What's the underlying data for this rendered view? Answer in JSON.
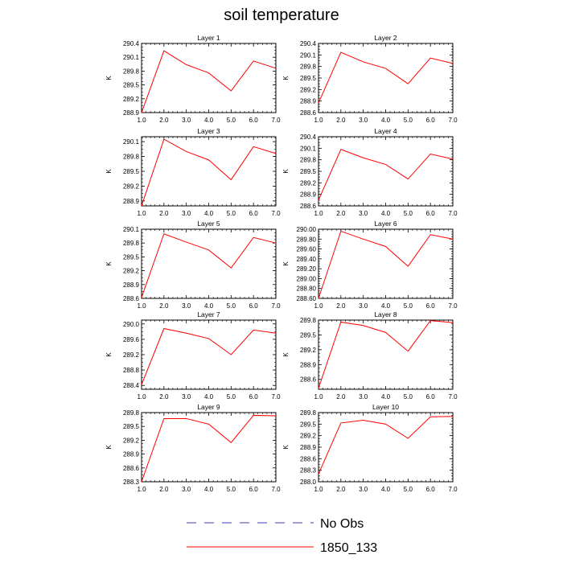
{
  "title": "soil temperature",
  "colors": {
    "model_line": "#ff0000",
    "obs_line": "#3b3bb5",
    "axis": "#000000"
  },
  "legend": {
    "entries": [
      {
        "label": "No Obs",
        "style": "dashed",
        "color": "#3b3bb5"
      },
      {
        "label": "1850_133",
        "style": "solid",
        "color": "#ff0000"
      }
    ]
  },
  "chart_data": [
    {
      "type": "line",
      "title": "Layer 1",
      "ylabel": "K",
      "x": [
        1,
        2,
        3,
        4,
        5,
        6,
        7
      ],
      "xlim": [
        1,
        7
      ],
      "ylim": [
        288.9,
        290.4
      ],
      "xticks": [
        "1.0",
        "2.0",
        "3.0",
        "4.0",
        "5.0",
        "6.0",
        "7.0"
      ],
      "yticks": [
        "288.9",
        "289.2",
        "289.5",
        "289.8",
        "290.1",
        "290.4"
      ],
      "series": [
        {
          "values": [
            288.9,
            290.24,
            289.94,
            289.76,
            289.37,
            290.02,
            289.86
          ]
        }
      ]
    },
    {
      "type": "line",
      "title": "Layer 2",
      "ylabel": "K",
      "x": [
        1,
        2,
        3,
        4,
        5,
        6,
        7
      ],
      "xlim": [
        1,
        7
      ],
      "ylim": [
        288.6,
        290.4
      ],
      "xticks": [
        "1.0",
        "2.0",
        "3.0",
        "4.0",
        "5.0",
        "6.0",
        "7.0"
      ],
      "yticks": [
        "288.6",
        "288.9",
        "289.2",
        "289.5",
        "289.8",
        "290.1",
        "290.4"
      ],
      "series": [
        {
          "values": [
            288.85,
            290.17,
            289.92,
            289.75,
            289.35,
            290.02,
            289.88
          ]
        }
      ]
    },
    {
      "type": "line",
      "title": "Layer 3",
      "ylabel": "K",
      "x": [
        1,
        2,
        3,
        4,
        5,
        6,
        7
      ],
      "xlim": [
        1,
        7
      ],
      "ylim": [
        288.8,
        290.2
      ],
      "xticks": [
        "1.0",
        "2.0",
        "3.0",
        "4.0",
        "5.0",
        "6.0",
        "7.0"
      ],
      "yticks": [
        "288.9",
        "289.2",
        "289.5",
        "289.8",
        "290.1"
      ],
      "series": [
        {
          "values": [
            288.8,
            290.15,
            289.9,
            289.73,
            289.33,
            290.0,
            289.86
          ]
        }
      ]
    },
    {
      "type": "line",
      "title": "Layer 4",
      "ylabel": "K",
      "x": [
        1,
        2,
        3,
        4,
        5,
        6,
        7
      ],
      "xlim": [
        1,
        7
      ],
      "ylim": [
        288.6,
        290.4
      ],
      "xticks": [
        "1.0",
        "2.0",
        "3.0",
        "4.0",
        "5.0",
        "6.0",
        "7.0"
      ],
      "yticks": [
        "288.6",
        "288.9",
        "289.2",
        "289.5",
        "289.8",
        "290.1",
        "290.4"
      ],
      "series": [
        {
          "values": [
            288.75,
            290.07,
            289.85,
            289.68,
            289.3,
            289.95,
            289.82
          ]
        }
      ]
    },
    {
      "type": "line",
      "title": "Layer 5",
      "ylabel": "K",
      "x": [
        1,
        2,
        3,
        4,
        5,
        6,
        7
      ],
      "xlim": [
        1,
        7
      ],
      "ylim": [
        288.6,
        290.1
      ],
      "xticks": [
        "1.0",
        "2.0",
        "3.0",
        "4.0",
        "5.0",
        "6.0",
        "7.0"
      ],
      "yticks": [
        "288.6",
        "288.9",
        "289.2",
        "289.5",
        "289.8",
        "290.1"
      ],
      "series": [
        {
          "values": [
            288.62,
            290.0,
            289.82,
            289.65,
            289.26,
            289.92,
            289.8
          ]
        }
      ]
    },
    {
      "type": "line",
      "title": "Layer 6",
      "ylabel": "K",
      "x": [
        1,
        2,
        3,
        4,
        5,
        6,
        7
      ],
      "xlim": [
        1,
        7
      ],
      "ylim": [
        288.6,
        290.0
      ],
      "xticks": [
        "1.0",
        "2.0",
        "3.0",
        "4.0",
        "5.0",
        "6.0",
        "7.0"
      ],
      "yticks": [
        "288.60",
        "288.80",
        "289.00",
        "289.20",
        "289.40",
        "289.60",
        "289.80",
        "290.00"
      ],
      "series": [
        {
          "values": [
            288.6,
            289.96,
            289.8,
            289.65,
            289.25,
            289.89,
            289.8
          ]
        }
      ]
    },
    {
      "type": "line",
      "title": "Layer 7",
      "ylabel": "K",
      "x": [
        1,
        2,
        3,
        4,
        5,
        6,
        7
      ],
      "xlim": [
        1,
        7
      ],
      "ylim": [
        288.3,
        290.1
      ],
      "xticks": [
        "1.0",
        "2.0",
        "3.0",
        "4.0",
        "5.0",
        "6.0",
        "7.0"
      ],
      "yticks": [
        "288.4",
        "288.8",
        "289.2",
        "289.6",
        "290.0"
      ],
      "series": [
        {
          "values": [
            288.42,
            289.88,
            289.76,
            289.62,
            289.2,
            289.84,
            289.76
          ]
        }
      ]
    },
    {
      "type": "line",
      "title": "Layer 8",
      "ylabel": "K",
      "x": [
        1,
        2,
        3,
        4,
        5,
        6,
        7
      ],
      "xlim": [
        1,
        7
      ],
      "ylim": [
        288.4,
        289.8
      ],
      "xticks": [
        "1.0",
        "2.0",
        "3.0",
        "4.0",
        "5.0",
        "6.0",
        "7.0"
      ],
      "yticks": [
        "288.6",
        "288.9",
        "289.2",
        "289.5",
        "289.8"
      ],
      "series": [
        {
          "values": [
            288.42,
            289.76,
            289.69,
            289.55,
            289.17,
            289.79,
            289.75
          ]
        }
      ]
    },
    {
      "type": "line",
      "title": "Layer 9",
      "ylabel": "K",
      "x": [
        1,
        2,
        3,
        4,
        5,
        6,
        7
      ],
      "xlim": [
        1,
        7
      ],
      "ylim": [
        288.3,
        289.8
      ],
      "xticks": [
        "1.0",
        "2.0",
        "3.0",
        "4.0",
        "5.0",
        "6.0",
        "7.0"
      ],
      "yticks": [
        "288.3",
        "288.6",
        "288.9",
        "289.2",
        "289.5",
        "289.8"
      ],
      "series": [
        {
          "values": [
            288.3,
            289.67,
            289.67,
            289.55,
            289.15,
            289.74,
            289.73
          ]
        }
      ]
    },
    {
      "type": "line",
      "title": "Layer 10",
      "ylabel": "K",
      "x": [
        1,
        2,
        3,
        4,
        5,
        6,
        7
      ],
      "xlim": [
        1,
        7
      ],
      "ylim": [
        288.0,
        289.8
      ],
      "xticks": [
        "1.0",
        "2.0",
        "3.0",
        "4.0",
        "5.0",
        "6.0",
        "7.0"
      ],
      "yticks": [
        "288.0",
        "288.3",
        "288.6",
        "288.9",
        "289.2",
        "289.5",
        "289.8"
      ],
      "series": [
        {
          "values": [
            288.2,
            289.53,
            289.6,
            289.5,
            289.13,
            289.69,
            289.7
          ]
        }
      ]
    }
  ]
}
